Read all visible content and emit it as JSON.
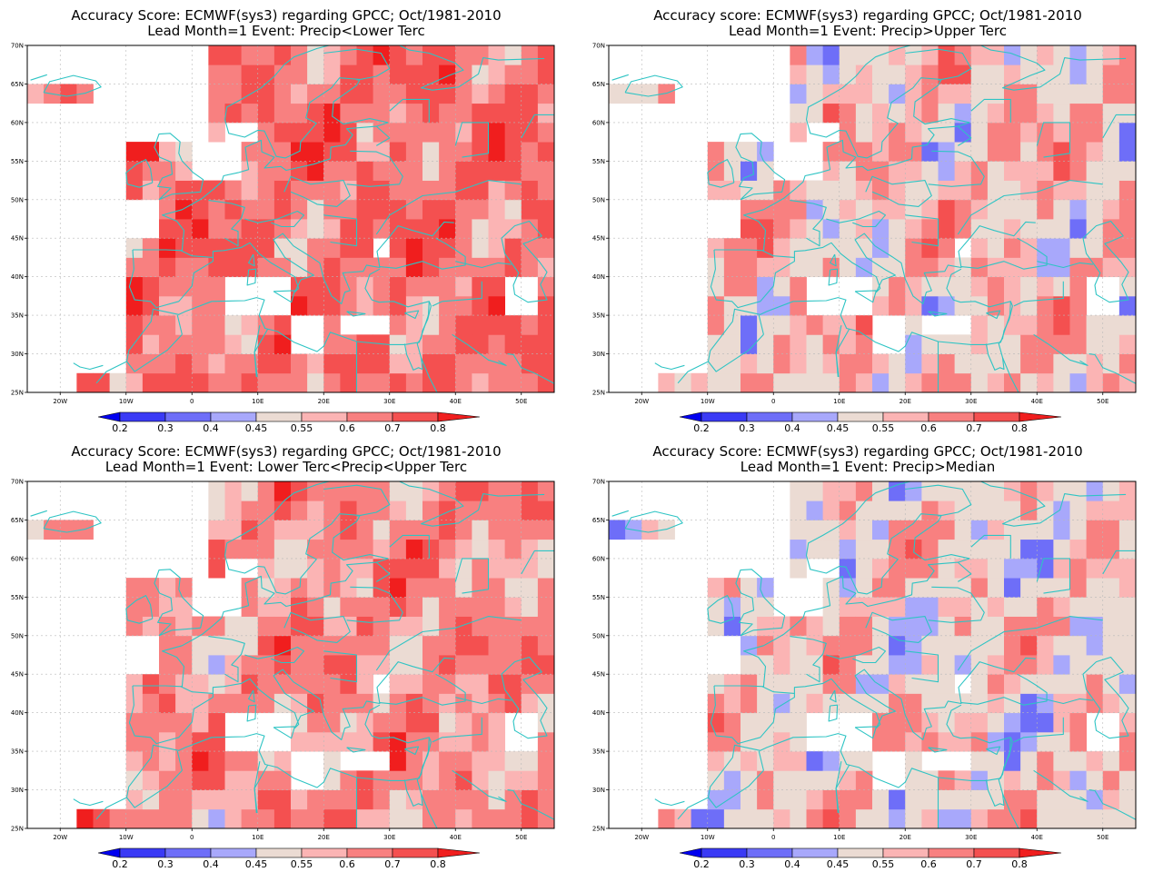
{
  "panels": [
    {
      "title1": "Accuracy Score: ECMWF(sys3) regarding GPCC; Oct/1981-2010",
      "title2": "Lead Month=1 Event: Precip<Lower Terc",
      "bias": 0.1,
      "seed": 11
    },
    {
      "title1": "Accuracy score: ECMWF(sys3) regarding GPCC; Oct/1981-2010",
      "title2": "Lead Month=1 Event: Precip>Upper Terc",
      "bias": -0.02,
      "seed": 23
    },
    {
      "title1": "Accuracy Score: ECMWF(sys3) regarding GPCC; Oct/1981-2010",
      "title2": "Lead Month=1 Event: Lower Terc<Precip<Upper Terc",
      "bias": 0.05,
      "seed": 37
    },
    {
      "title1": "Accuracy Score: ECMWF(sys3) regarding GPCC; Oct/1981-2010",
      "title2": "Lead Month=1 Event: Precip>Median",
      "bias": -0.05,
      "seed": 51
    }
  ],
  "lat_labels": [
    "25N",
    "30N",
    "35N",
    "40N",
    "45N",
    "50N",
    "55N",
    "60N",
    "65N",
    "70N"
  ],
  "lon_labels": [
    "20W",
    "10W",
    "0",
    "10E",
    "20E",
    "30E",
    "40E",
    "50E"
  ],
  "colorbar": {
    "labels": [
      "0.2",
      "0.3",
      "0.4",
      "0.45",
      "0.55",
      "0.6",
      "0.7",
      "0.8"
    ],
    "colors": [
      "#0000f0",
      "#3a3af5",
      "#6e6ef8",
      "#a8a8fb",
      "#ebdbd3",
      "#fbb4b4",
      "#f88080",
      "#f45050",
      "#f01e1e"
    ]
  },
  "colors": {
    "coast": "#2ec4c4",
    "grid": "#b8b8b8"
  }
}
